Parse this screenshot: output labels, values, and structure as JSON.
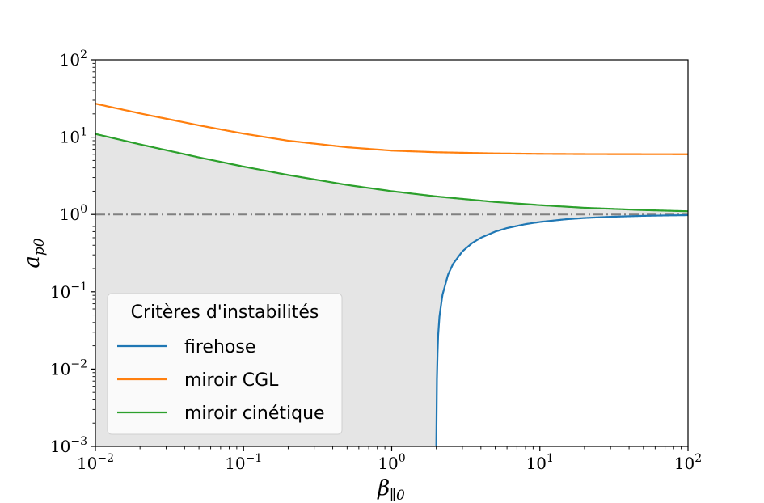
{
  "chart_data": {
    "type": "line",
    "title": "",
    "xlabel": "β",
    "xlabel_subscript": "∥0",
    "ylabel": "a",
    "ylabel_subscript": "p0",
    "xscale": "log",
    "yscale": "log",
    "xlim": [
      0.01,
      100
    ],
    "ylim": [
      0.001,
      100
    ],
    "grid": false,
    "x_ticks": [
      {
        "base": "10",
        "exp": "−2"
      },
      {
        "base": "10",
        "exp": "−1"
      },
      {
        "base": "10",
        "exp": "0"
      },
      {
        "base": "10",
        "exp": "1"
      },
      {
        "base": "10",
        "exp": "2"
      }
    ],
    "y_ticks": [
      {
        "base": "10",
        "exp": "−3"
      },
      {
        "base": "10",
        "exp": "−2"
      },
      {
        "base": "10",
        "exp": "−1"
      },
      {
        "base": "10",
        "exp": "0"
      },
      {
        "base": "10",
        "exp": "1"
      },
      {
        "base": "10",
        "exp": "2"
      }
    ],
    "reference_line": {
      "y": 1,
      "style": "dashdot",
      "color": "#808080"
    },
    "stable_region": {
      "color": "#e5e5e5",
      "description_source": "shaded area between firehose and miroir cinétique"
    },
    "legend": {
      "title": "Critères d'instabilités",
      "placement": "lower-left"
    },
    "series": [
      {
        "name": "firehose",
        "color": "#1f77b4",
        "formula_points": [
          {
            "x": 2.0,
            "y": 0.001
          },
          {
            "x": 2.002,
            "y": 0.001
          },
          {
            "x": 2.01,
            "y": 0.005
          },
          {
            "x": 2.05,
            "y": 0.0244
          },
          {
            "x": 2.1,
            "y": 0.0476
          },
          {
            "x": 2.2,
            "y": 0.0909
          },
          {
            "x": 2.4,
            "y": 0.1667
          },
          {
            "x": 2.6,
            "y": 0.2308
          },
          {
            "x": 3.0,
            "y": 0.3333
          },
          {
            "x": 3.5,
            "y": 0.4286
          },
          {
            "x": 4.0,
            "y": 0.5
          },
          {
            "x": 5.0,
            "y": 0.6
          },
          {
            "x": 6.0,
            "y": 0.6667
          },
          {
            "x": 8.0,
            "y": 0.75
          },
          {
            "x": 10.0,
            "y": 0.8
          },
          {
            "x": 15.0,
            "y": 0.8667
          },
          {
            "x": 20.0,
            "y": 0.9
          },
          {
            "x": 30.0,
            "y": 0.9333
          },
          {
            "x": 50.0,
            "y": 0.96
          },
          {
            "x": 70.0,
            "y": 0.9714
          },
          {
            "x": 100.0,
            "y": 0.98
          }
        ]
      },
      {
        "name": "miroir CGL",
        "color": "#ff7f0e",
        "formula_points": [
          {
            "x": 0.01,
            "y": 27.1
          },
          {
            "x": 0.02,
            "y": 20.3
          },
          {
            "x": 0.05,
            "y": 14.2
          },
          {
            "x": 0.1,
            "y": 11.1
          },
          {
            "x": 0.2,
            "y": 9.0
          },
          {
            "x": 0.5,
            "y": 7.4
          },
          {
            "x": 1.0,
            "y": 6.7
          },
          {
            "x": 2.0,
            "y": 6.38
          },
          {
            "x": 5.0,
            "y": 6.16
          },
          {
            "x": 10.0,
            "y": 6.08
          },
          {
            "x": 20.0,
            "y": 6.04
          },
          {
            "x": 50.0,
            "y": 6.02
          },
          {
            "x": 100.0,
            "y": 6.01
          }
        ]
      },
      {
        "name": "miroir cinétique",
        "color": "#2ca02c",
        "formula_points": [
          {
            "x": 0.01,
            "y": 11.0
          },
          {
            "x": 0.02,
            "y": 8.07
          },
          {
            "x": 0.05,
            "y": 5.47
          },
          {
            "x": 0.1,
            "y": 4.16
          },
          {
            "x": 0.2,
            "y": 3.24
          },
          {
            "x": 0.5,
            "y": 2.41
          },
          {
            "x": 1.0,
            "y": 2.0
          },
          {
            "x": 2.0,
            "y": 1.71
          },
          {
            "x": 5.0,
            "y": 1.45
          },
          {
            "x": 10.0,
            "y": 1.32
          },
          {
            "x": 20.0,
            "y": 1.22
          },
          {
            "x": 50.0,
            "y": 1.14
          },
          {
            "x": 100.0,
            "y": 1.1
          }
        ]
      }
    ]
  }
}
